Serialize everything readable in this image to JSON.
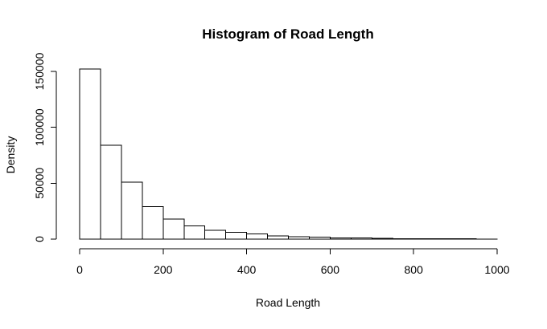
{
  "chart_data": {
    "type": "bar",
    "title": "Histogram of Road Length",
    "xlabel": "Road Length",
    "ylabel": "Density",
    "xlim": [
      0,
      1000
    ],
    "ylim": [
      0,
      150000
    ],
    "x_ticks": [
      0,
      200,
      400,
      600,
      800,
      1000
    ],
    "y_ticks": [
      0,
      50000,
      100000,
      150000
    ],
    "bin_edges": [
      0,
      50,
      100,
      150,
      200,
      250,
      300,
      350,
      400,
      450,
      500,
      550,
      600,
      650,
      700,
      750,
      800,
      850,
      900,
      950,
      1000
    ],
    "values": [
      152000,
      84000,
      51000,
      29000,
      18000,
      12000,
      8000,
      6000,
      4500,
      3000,
      2300,
      1700,
      1200,
      900,
      600,
      450,
      350,
      250,
      180,
      120
    ],
    "grid": false,
    "legend": "none"
  }
}
